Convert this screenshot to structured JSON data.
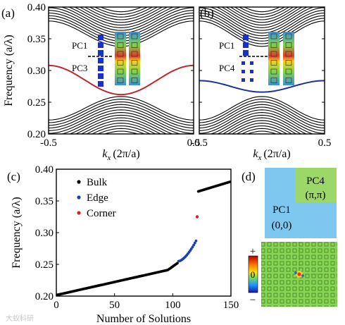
{
  "chart_data": [
    {
      "panel_label": "(a)",
      "type": "line",
      "xlabel": "k",
      "xlabel_sub": "x",
      "xlabel_unit": "(2π/a)",
      "ylabel": "Frequency (a/λ)",
      "xlim": [
        -0.5,
        0.5
      ],
      "ylim": [
        0.2,
        0.4
      ],
      "x_ticks": [
        "-0.5",
        "0.5"
      ],
      "y_ticks": [
        "0.20",
        "0.25",
        "0.30",
        "0.35",
        "0.40"
      ],
      "bulk_color": "#000000",
      "edge_color": "#c0262d",
      "edge_band": {
        "x": [
          -0.5,
          -0.25,
          0,
          0.25,
          0.5
        ],
        "y": [
          0.308,
          0.279,
          0.262,
          0.279,
          0.308
        ]
      },
      "lower_bands_top": [
        0.222,
        0.259,
        0.222
      ],
      "upper_bands_bottom": [
        0.378,
        0.338,
        0.378
      ],
      "inset_labels": [
        "PC1",
        "PC3"
      ]
    },
    {
      "panel_label": "(b)",
      "type": "line",
      "xlabel": "k",
      "xlabel_sub": "x",
      "xlabel_unit": "(2π/a)",
      "xlim": [
        -0.5,
        0.5
      ],
      "ylim": [
        0.2,
        0.4
      ],
      "x_ticks": [
        "-0.5",
        "0.5"
      ],
      "bulk_color": "#000000",
      "edge_color": "#1f2f9e",
      "edge_band": {
        "x": [
          -0.5,
          -0.25,
          0,
          0.25,
          0.5
        ],
        "y": [
          0.284,
          0.272,
          0.266,
          0.272,
          0.284
        ]
      },
      "lower_bands_top": [
        0.222,
        0.259,
        0.222
      ],
      "upper_bands_bottom": [
        0.378,
        0.338,
        0.378
      ],
      "inset_labels": [
        "PC1",
        "PC4"
      ]
    },
    {
      "panel_label": "(c)",
      "type": "scatter",
      "xlabel": "Number of Solutions",
      "ylabel": "Frequency (a/λ)",
      "xlim": [
        0,
        150
      ],
      "ylim": [
        0.2,
        0.4
      ],
      "x_ticks": [
        "0",
        "50",
        "100",
        "150"
      ],
      "y_ticks": [
        "0.20",
        "0.25",
        "0.30",
        "0.35",
        "0.40"
      ],
      "series": [
        {
          "name": "Bulk",
          "color": "#000000",
          "segments": [
            {
              "x": [
                1,
                104
              ],
              "y": [
                0.202,
                0.252
              ],
              "shape": "linear-knee"
            },
            {
              "x": [
                122,
                149
              ],
              "y": [
                0.365,
                0.38
              ],
              "shape": "linear"
            }
          ]
        },
        {
          "name": "Edge",
          "color": "#1a3fb0",
          "segments": [
            {
              "x": [
                105,
                120
              ],
              "y": [
                0.255,
                0.287
              ],
              "shape": "convex"
            }
          ]
        },
        {
          "name": "Corner",
          "color": "#d2232a",
          "points": [
            {
              "x": 121,
              "y": 0.325
            }
          ]
        }
      ]
    }
  ],
  "panel_d": {
    "panel_label": "(d)",
    "pc1_label": "PC1",
    "pc1_k": "(0,0)",
    "pc4_label": "PC4",
    "pc4_k": "(π,π)",
    "pc1_color": "#7ec8f0",
    "pc4_color": "#9bd868",
    "field_color": "#7fd34a",
    "colorbar_plus": "+",
    "colorbar_zero": "0",
    "colorbar_minus": "−"
  },
  "watermark": "大蚁科研"
}
